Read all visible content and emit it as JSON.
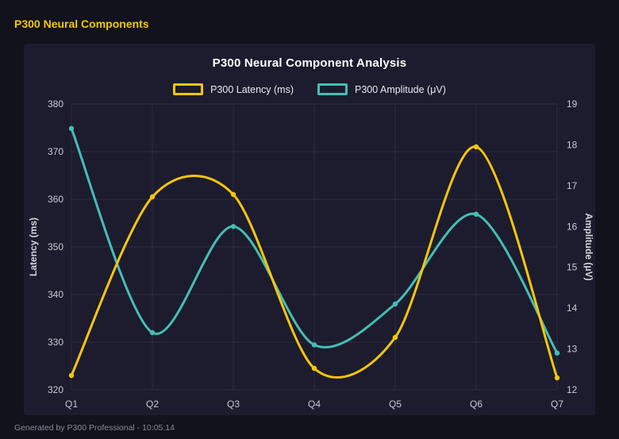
{
  "header": {
    "title": "P300 Neural Components"
  },
  "footer": {
    "text": "Generated by P300 Professional - 10:05:14"
  },
  "theme": {
    "background": "#12121c",
    "panel_background": "#1c1c2e",
    "accent": "#f5c60a",
    "grid_color": "rgba(255,255,255,0.08)",
    "tick_color": "#c9c9d4",
    "axis_title_color": "#d6d6e0",
    "title_color": "#ffffff",
    "muted_color": "#8b8b97"
  },
  "chart_data": {
    "type": "line",
    "title": "P300 Neural Component Analysis",
    "categories": [
      "Q1",
      "Q2",
      "Q3",
      "Q4",
      "Q5",
      "Q6",
      "Q7"
    ],
    "series": [
      {
        "name": "P300 Latency (ms)",
        "axis": "left",
        "color": "#f5c60a",
        "values": [
          323,
          360.5,
          361,
          324.5,
          331,
          371,
          322.5
        ]
      },
      {
        "name": "P300 Amplitude (μV)",
        "axis": "right",
        "color": "#46beb4",
        "values": [
          18.4,
          13.4,
          16.0,
          13.1,
          14.1,
          16.3,
          12.9
        ]
      }
    ],
    "left_axis": {
      "label": "Latency (ms)",
      "min": 320,
      "max": 380,
      "step": 10
    },
    "right_axis": {
      "label": "Amplitude (μV)",
      "min": 12,
      "max": 19,
      "step": 1
    },
    "grid": true,
    "legend_position": "top",
    "curve": "smooth"
  }
}
